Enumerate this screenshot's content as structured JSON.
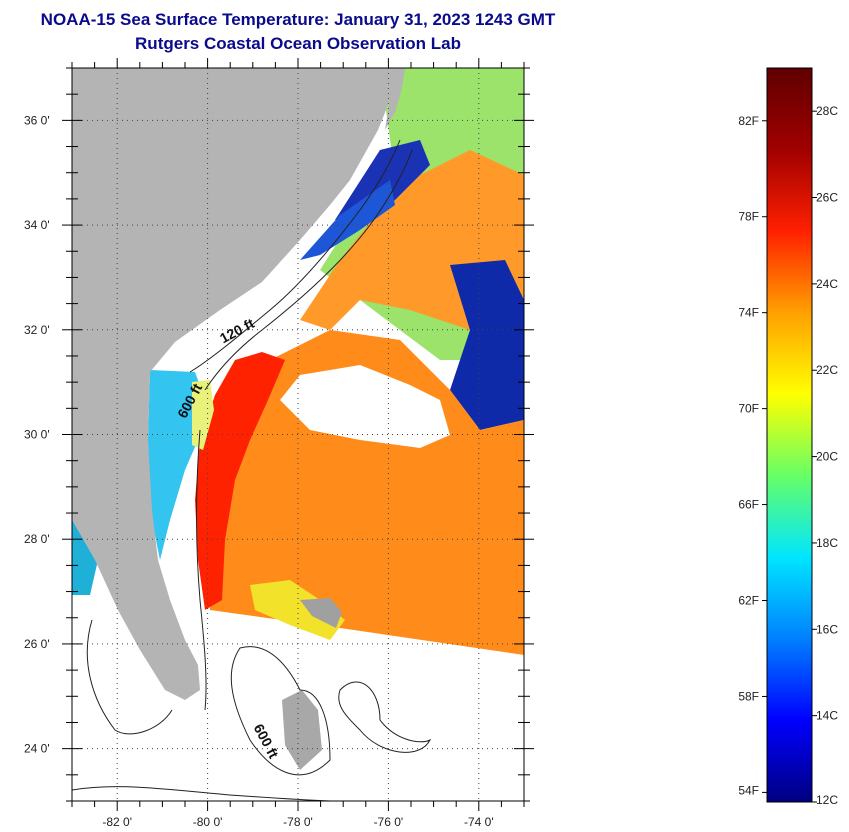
{
  "title": "NOAA-15 Sea Surface Temperature:  January 31, 2023 1243 GMT",
  "subtitle": "Rutgers Coastal Ocean Observation Lab",
  "map": {
    "lat_range": [
      23,
      37
    ],
    "lon_range": [
      -83,
      -73
    ],
    "lat_ticks": [
      24,
      26,
      28,
      30,
      32,
      34,
      36
    ],
    "lon_ticks": [
      -82,
      -80,
      -78,
      -76,
      -74
    ],
    "lat_tick_labels": [
      "24 0'",
      "26 0'",
      "28 0'",
      "30 0'",
      "32 0'",
      "34 0'",
      "36 0'"
    ],
    "lon_tick_labels": [
      "-82 0'",
      "-80 0'",
      "-78 0'",
      "-76 0'",
      "-74 0'"
    ],
    "grid": "dotted",
    "contour_labels": [
      {
        "text": "120 ft",
        "lon": -79.3,
        "lat": 31.9
      },
      {
        "text": "600 ft",
        "lon": -80.3,
        "lat": 30.6
      },
      {
        "text": "600 ft",
        "lon": -78.8,
        "lat": 24.1
      }
    ],
    "colors": {
      "land": "#b4b4b4",
      "cloud": "#ffffff",
      "gulf_stream": "#ff2200",
      "warm_ocean": "#ff8c1a",
      "shelf_cold": "#1e56d8",
      "shelf_deep_cold": "#0a1e9a",
      "near_shore": "#33c4f0"
    }
  },
  "colorbar": {
    "range_c": [
      12,
      29
    ],
    "stops": [
      "#000080",
      "#0000ff",
      "#0080ff",
      "#00e6ff",
      "#66ff66",
      "#ffff00",
      "#ffa000",
      "#ff2000",
      "#a00000",
      "#600000"
    ],
    "celsius_ticks": [
      {
        "value": 12,
        "label": "12C"
      },
      {
        "value": 14,
        "label": "14C"
      },
      {
        "value": 16,
        "label": "16C"
      },
      {
        "value": 18,
        "label": "18C"
      },
      {
        "value": 20,
        "label": "20C"
      },
      {
        "value": 22,
        "label": "22C"
      },
      {
        "value": 24,
        "label": "24C"
      },
      {
        "value": 26,
        "label": "26C"
      },
      {
        "value": 28,
        "label": "28C"
      }
    ],
    "fahrenheit_ticks": [
      {
        "value": 54,
        "label": "54F"
      },
      {
        "value": 58,
        "label": "58F"
      },
      {
        "value": 62,
        "label": "62F"
      },
      {
        "value": 66,
        "label": "66F"
      },
      {
        "value": 70,
        "label": "70F"
      },
      {
        "value": 74,
        "label": "74F"
      },
      {
        "value": 78,
        "label": "78F"
      },
      {
        "value": 82,
        "label": "82F"
      }
    ]
  }
}
